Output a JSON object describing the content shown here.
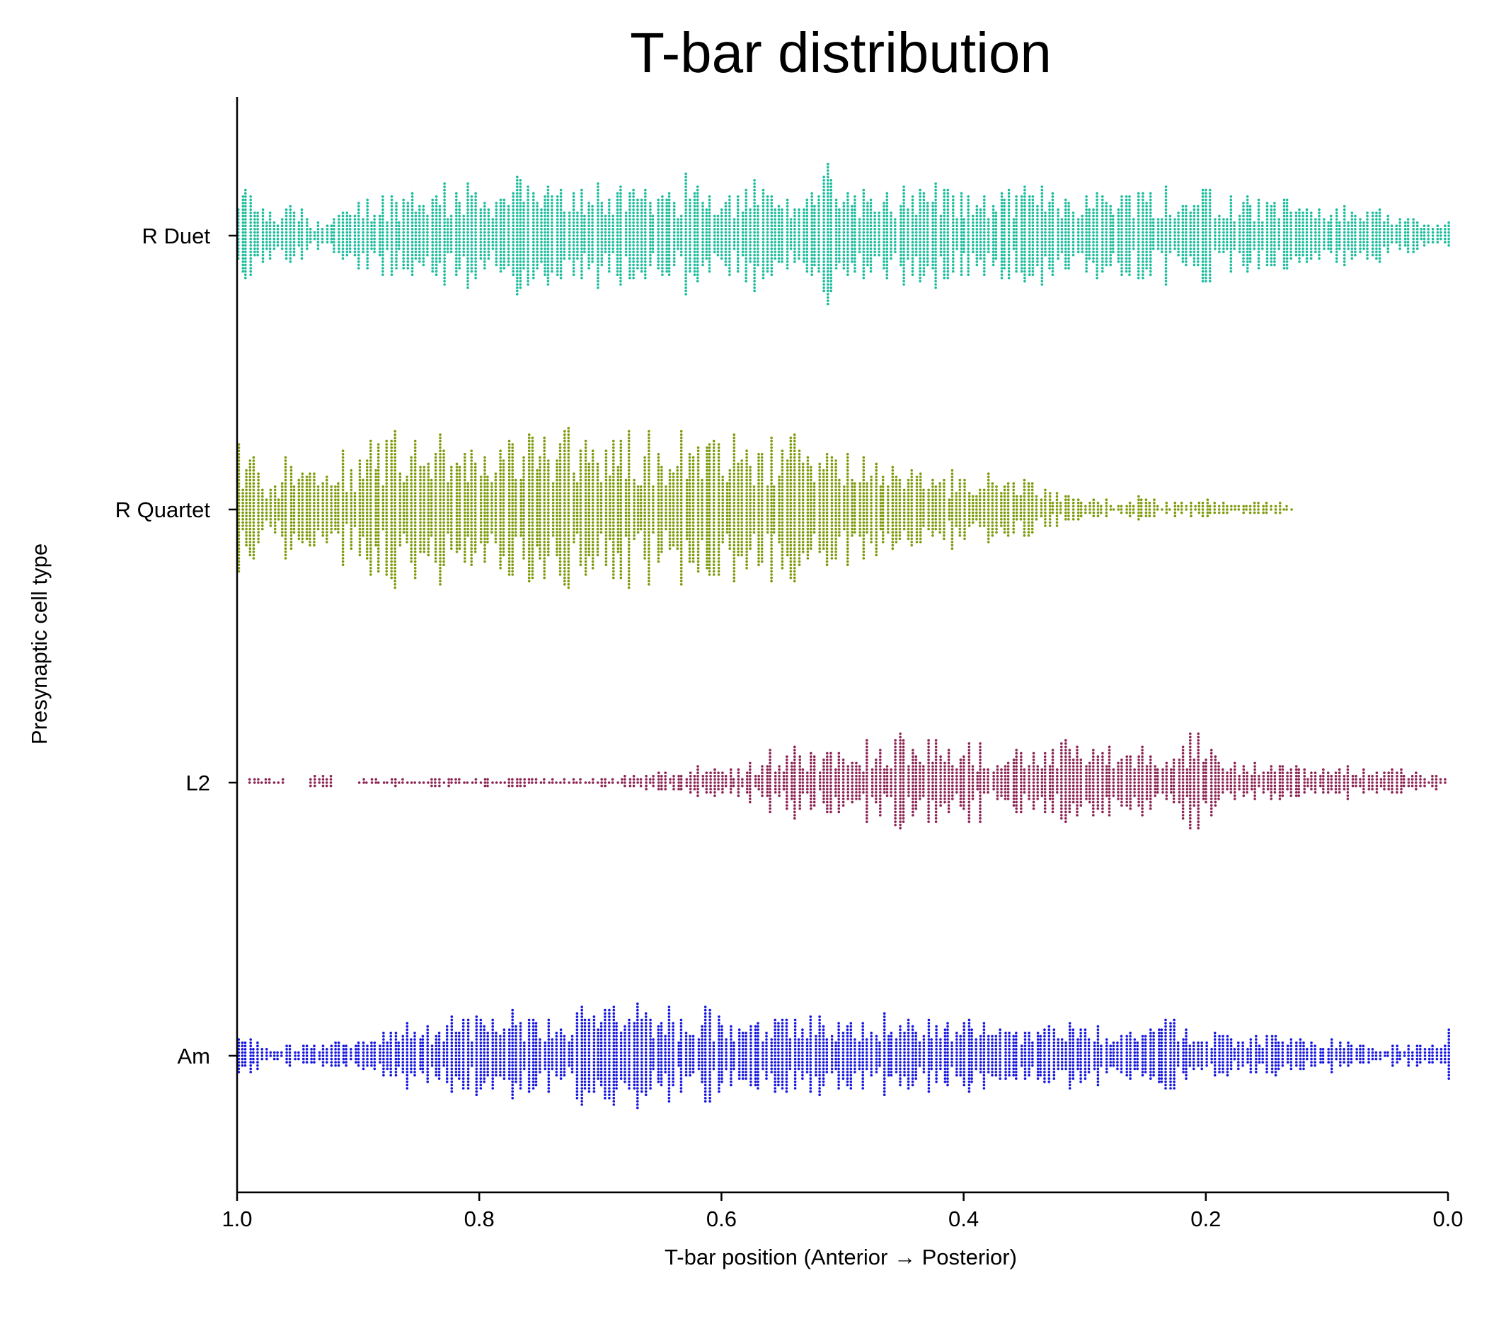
{
  "chart_data": {
    "type": "scatter",
    "subtype": "swarm",
    "title": "T-bar distribution",
    "xlabel": "T-bar position (Anterior → Posterior)",
    "ylabel": "Presynaptic cell type",
    "xlim": [
      1.0,
      0.0
    ],
    "x_inverted": true,
    "xticks": [
      "1.0",
      "0.8",
      "0.6",
      "0.4",
      "0.2",
      "0.0"
    ],
    "grid": false,
    "categories": [
      "R Duet",
      "R Quartet",
      "L2",
      "Am"
    ],
    "series": [
      {
        "category": "R Duet",
        "color": "#1abc9c",
        "range": [
          0.0,
          1.0
        ],
        "density": [
          [
            1.0,
            28
          ],
          [
            0.98,
            14
          ],
          [
            0.96,
            18
          ],
          [
            0.94,
            8
          ],
          [
            0.92,
            14
          ],
          [
            0.9,
            22
          ],
          [
            0.88,
            26
          ],
          [
            0.86,
            30
          ],
          [
            0.84,
            26
          ],
          [
            0.82,
            30
          ],
          [
            0.8,
            28
          ],
          [
            0.78,
            32
          ],
          [
            0.76,
            30
          ],
          [
            0.74,
            28
          ],
          [
            0.72,
            30
          ],
          [
            0.7,
            28
          ],
          [
            0.68,
            26
          ],
          [
            0.66,
            28
          ],
          [
            0.64,
            28
          ],
          [
            0.62,
            30
          ],
          [
            0.6,
            28
          ],
          [
            0.58,
            26
          ],
          [
            0.56,
            22
          ],
          [
            0.54,
            24
          ],
          [
            0.52,
            34
          ],
          [
            0.5,
            30
          ],
          [
            0.48,
            22
          ],
          [
            0.46,
            24
          ],
          [
            0.44,
            26
          ],
          [
            0.42,
            28
          ],
          [
            0.4,
            24
          ],
          [
            0.38,
            26
          ],
          [
            0.36,
            28
          ],
          [
            0.34,
            30
          ],
          [
            0.32,
            28
          ],
          [
            0.3,
            26
          ],
          [
            0.28,
            30
          ],
          [
            0.26,
            28
          ],
          [
            0.24,
            26
          ],
          [
            0.22,
            24
          ],
          [
            0.2,
            26
          ],
          [
            0.18,
            24
          ],
          [
            0.16,
            22
          ],
          [
            0.14,
            22
          ],
          [
            0.12,
            20
          ],
          [
            0.1,
            18
          ],
          [
            0.08,
            16
          ],
          [
            0.06,
            14
          ],
          [
            0.04,
            10
          ],
          [
            0.02,
            6
          ],
          [
            0.0,
            16
          ]
        ]
      },
      {
        "category": "R Quartet",
        "color": "#7c9a0a",
        "range": [
          0.13,
          1.0
        ],
        "density": [
          [
            1.0,
            30
          ],
          [
            0.98,
            18
          ],
          [
            0.96,
            26
          ],
          [
            0.94,
            22
          ],
          [
            0.92,
            26
          ],
          [
            0.9,
            38
          ],
          [
            0.88,
            40
          ],
          [
            0.86,
            40
          ],
          [
            0.84,
            38
          ],
          [
            0.82,
            36
          ],
          [
            0.8,
            38
          ],
          [
            0.78,
            40
          ],
          [
            0.76,
            42
          ],
          [
            0.74,
            40
          ],
          [
            0.72,
            40
          ],
          [
            0.7,
            42
          ],
          [
            0.68,
            38
          ],
          [
            0.66,
            40
          ],
          [
            0.64,
            36
          ],
          [
            0.62,
            38
          ],
          [
            0.6,
            36
          ],
          [
            0.58,
            32
          ],
          [
            0.56,
            34
          ],
          [
            0.54,
            36
          ],
          [
            0.52,
            34
          ],
          [
            0.5,
            28
          ],
          [
            0.48,
            24
          ],
          [
            0.46,
            24
          ],
          [
            0.44,
            22
          ],
          [
            0.42,
            20
          ],
          [
            0.4,
            18
          ],
          [
            0.38,
            16
          ],
          [
            0.36,
            18
          ],
          [
            0.34,
            10
          ],
          [
            0.32,
            8
          ],
          [
            0.3,
            6
          ],
          [
            0.28,
            4
          ],
          [
            0.26,
            6
          ],
          [
            0.24,
            4
          ],
          [
            0.22,
            5
          ],
          [
            0.2,
            6
          ],
          [
            0.18,
            4
          ],
          [
            0.16,
            4
          ],
          [
            0.14,
            3
          ],
          [
            0.13,
            3
          ]
        ]
      },
      {
        "category": "L2",
        "color": "#8b2252",
        "range": [
          0.0,
          1.0
        ],
        "density": [
          [
            0.99,
            2
          ],
          [
            0.96,
            0
          ],
          [
            0.94,
            4
          ],
          [
            0.92,
            0
          ],
          [
            0.9,
            2
          ],
          [
            0.88,
            2
          ],
          [
            0.86,
            2
          ],
          [
            0.84,
            3
          ],
          [
            0.82,
            2
          ],
          [
            0.8,
            2
          ],
          [
            0.78,
            3
          ],
          [
            0.76,
            2
          ],
          [
            0.74,
            2
          ],
          [
            0.7,
            2
          ],
          [
            0.68,
            4
          ],
          [
            0.66,
            6
          ],
          [
            0.64,
            6
          ],
          [
            0.62,
            8
          ],
          [
            0.6,
            8
          ],
          [
            0.58,
            10
          ],
          [
            0.56,
            16
          ],
          [
            0.54,
            18
          ],
          [
            0.52,
            18
          ],
          [
            0.5,
            20
          ],
          [
            0.48,
            22
          ],
          [
            0.46,
            24
          ],
          [
            0.44,
            26
          ],
          [
            0.42,
            20
          ],
          [
            0.4,
            18
          ],
          [
            0.38,
            18
          ],
          [
            0.36,
            20
          ],
          [
            0.34,
            18
          ],
          [
            0.32,
            20
          ],
          [
            0.3,
            18
          ],
          [
            0.28,
            16
          ],
          [
            0.26,
            16
          ],
          [
            0.24,
            18
          ],
          [
            0.22,
            24
          ],
          [
            0.2,
            16
          ],
          [
            0.18,
            12
          ],
          [
            0.16,
            10
          ],
          [
            0.14,
            10
          ],
          [
            0.12,
            8
          ],
          [
            0.1,
            8
          ],
          [
            0.08,
            6
          ],
          [
            0.06,
            6
          ],
          [
            0.04,
            6
          ],
          [
            0.02,
            4
          ],
          [
            0.0,
            20
          ]
        ]
      },
      {
        "category": "Am",
        "color": "#1414e0",
        "range": [
          0.0,
          1.0
        ],
        "density": [
          [
            1.0,
            10
          ],
          [
            0.98,
            4
          ],
          [
            0.96,
            6
          ],
          [
            0.94,
            6
          ],
          [
            0.92,
            8
          ],
          [
            0.9,
            10
          ],
          [
            0.88,
            18
          ],
          [
            0.86,
            18
          ],
          [
            0.84,
            20
          ],
          [
            0.82,
            20
          ],
          [
            0.8,
            22
          ],
          [
            0.78,
            22
          ],
          [
            0.76,
            22
          ],
          [
            0.74,
            22
          ],
          [
            0.72,
            26
          ],
          [
            0.7,
            30
          ],
          [
            0.68,
            26
          ],
          [
            0.66,
            22
          ],
          [
            0.64,
            22
          ],
          [
            0.62,
            22
          ],
          [
            0.6,
            20
          ],
          [
            0.58,
            20
          ],
          [
            0.56,
            22
          ],
          [
            0.54,
            22
          ],
          [
            0.52,
            20
          ],
          [
            0.5,
            20
          ],
          [
            0.48,
            20
          ],
          [
            0.46,
            22
          ],
          [
            0.44,
            22
          ],
          [
            0.42,
            20
          ],
          [
            0.4,
            20
          ],
          [
            0.38,
            20
          ],
          [
            0.36,
            18
          ],
          [
            0.34,
            18
          ],
          [
            0.32,
            18
          ],
          [
            0.3,
            16
          ],
          [
            0.28,
            16
          ],
          [
            0.26,
            18
          ],
          [
            0.24,
            20
          ],
          [
            0.22,
            16
          ],
          [
            0.2,
            14
          ],
          [
            0.18,
            12
          ],
          [
            0.16,
            12
          ],
          [
            0.14,
            10
          ],
          [
            0.12,
            10
          ],
          [
            0.1,
            8
          ],
          [
            0.08,
            6
          ],
          [
            0.06,
            6
          ],
          [
            0.04,
            6
          ],
          [
            0.02,
            6
          ],
          [
            0.0,
            18
          ]
        ]
      }
    ]
  }
}
